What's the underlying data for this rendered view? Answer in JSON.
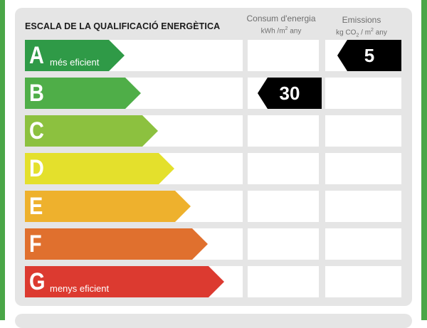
{
  "title": "ESCALA DE LA QUALIFICACIÓ ENERGÈTICA",
  "columns": {
    "consum": {
      "label": "Consum d'energia",
      "unit_a": "kWh /m",
      "unit_sup": "2",
      "unit_b": " any"
    },
    "emissions": {
      "label": "Emissions",
      "unit_a": "kg CO",
      "unit_sub": "2",
      "unit_b": " / m",
      "unit_sup": "2",
      "unit_c": " any"
    }
  },
  "ratings": [
    {
      "letter": "A",
      "sublabel": "més eficient",
      "color": "#2f9a47"
    },
    {
      "letter": "B",
      "sublabel": "",
      "color": "#4fae48"
    },
    {
      "letter": "C",
      "sublabel": "",
      "color": "#8cc13f"
    },
    {
      "letter": "D",
      "sublabel": "",
      "color": "#e4e02c"
    },
    {
      "letter": "E",
      "sublabel": "",
      "color": "#eeb12d"
    },
    {
      "letter": "F",
      "sublabel": "",
      "color": "#e0702e"
    },
    {
      "letter": "G",
      "sublabel": "menys eficient",
      "color": "#dc3a30"
    }
  ],
  "consum_value": "30",
  "consum_rating": "B",
  "emissions_value": "5",
  "emissions_rating": "A",
  "badge_color": "#000000",
  "frame_color": "#4aa647"
}
